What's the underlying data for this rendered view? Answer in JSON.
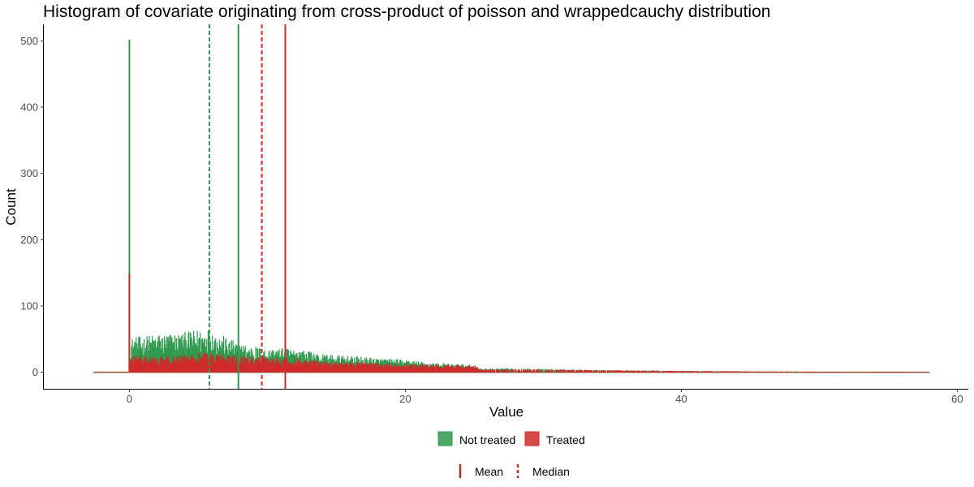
{
  "chart_data": {
    "type": "bar",
    "title": "Histogram of covariate originating from cross-product of poisson and wrappedcauchy distribution",
    "xlabel": "Value",
    "ylabel": "Count",
    "xlim": [
      -6.2,
      60.8
    ],
    "ylim": [
      -25,
      525
    ],
    "x_ticks": [
      0,
      20,
      40,
      60
    ],
    "y_ticks": [
      0,
      100,
      200,
      300,
      400,
      500
    ],
    "grid": false,
    "legend_position": "bottom",
    "baseline": {
      "x_start": -2.6,
      "x_end": 58,
      "color": "#8B4A2E"
    },
    "series": [
      {
        "name": "Not treated",
        "color": "#2E9A4F",
        "spike": {
          "x": 0,
          "value": 502
        },
        "profile": [
          {
            "x": 0.05,
            "value": 36
          },
          {
            "x": 2,
            "value": 40
          },
          {
            "x": 4,
            "value": 42
          },
          {
            "x": 5.7,
            "value": 47
          },
          {
            "x": 6.5,
            "value": 40
          },
          {
            "x": 8,
            "value": 30
          },
          {
            "x": 10,
            "value": 25
          },
          {
            "x": 12,
            "value": 25
          },
          {
            "x": 14,
            "value": 19
          },
          {
            "x": 16,
            "value": 17
          },
          {
            "x": 18,
            "value": 15
          },
          {
            "x": 20,
            "value": 13
          },
          {
            "x": 22,
            "value": 10
          },
          {
            "x": 25,
            "value": 8
          },
          {
            "x": 25.4,
            "value": 4
          },
          {
            "x": 28,
            "value": 4
          },
          {
            "x": 32,
            "value": 3
          },
          {
            "x": 36,
            "value": 2
          },
          {
            "x": 40,
            "value": 1.2
          },
          {
            "x": 45,
            "value": 0.7
          },
          {
            "x": 50,
            "value": 0.4
          },
          {
            "x": 56,
            "value": 0.2
          },
          {
            "x": 58,
            "value": 0
          }
        ]
      },
      {
        "name": "Treated",
        "color": "#D12A2A",
        "spike": {
          "x": 0,
          "value": 148
        },
        "profile": [
          {
            "x": 0.05,
            "value": 18
          },
          {
            "x": 2,
            "value": 16
          },
          {
            "x": 4,
            "value": 18
          },
          {
            "x": 5.5,
            "value": 22
          },
          {
            "x": 8,
            "value": 17
          },
          {
            "x": 10,
            "value": 16
          },
          {
            "x": 12,
            "value": 15
          },
          {
            "x": 14,
            "value": 12
          },
          {
            "x": 16,
            "value": 11
          },
          {
            "x": 18,
            "value": 10
          },
          {
            "x": 20,
            "value": 9
          },
          {
            "x": 22,
            "value": 8
          },
          {
            "x": 25,
            "value": 7
          },
          {
            "x": 25.4,
            "value": 3
          },
          {
            "x": 28,
            "value": 3
          },
          {
            "x": 32,
            "value": 2.5
          },
          {
            "x": 36,
            "value": 2
          },
          {
            "x": 40,
            "value": 1.5
          },
          {
            "x": 45,
            "value": 1
          },
          {
            "x": 50,
            "value": 0.6
          },
          {
            "x": 56,
            "value": 0.3
          },
          {
            "x": 58,
            "value": 0
          }
        ]
      }
    ],
    "reference_lines": [
      {
        "group": "Not treated",
        "stat": "Mean",
        "x": 7.9,
        "color": "#2E9A4F",
        "linetype": "solid"
      },
      {
        "group": "Not treated",
        "stat": "Median",
        "x": 5.8,
        "color": "#2E9A4F",
        "linetype": "dashed"
      },
      {
        "group": "Treated",
        "stat": "Mean",
        "x": 11.3,
        "color": "#D12A2A",
        "linetype": "solid"
      },
      {
        "group": "Treated",
        "stat": "Median",
        "x": 9.6,
        "color": "#D12A2A",
        "linetype": "dashed"
      }
    ],
    "legend_fill": [
      {
        "label": "Not treated",
        "color": "#2E9A4F"
      },
      {
        "label": "Treated",
        "color": "#D12A2A"
      }
    ],
    "legend_linetype": [
      {
        "label": "Mean",
        "linetype": "solid",
        "color": "#9B3A22"
      },
      {
        "label": "Median",
        "linetype": "dashed",
        "color": "#9B3A22"
      }
    ]
  }
}
